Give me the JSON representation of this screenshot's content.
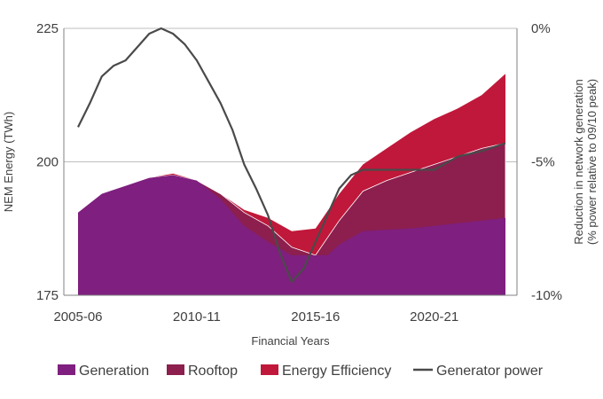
{
  "chart_data": {
    "type": "area",
    "title": "",
    "xlabel": "Financial Years",
    "ylabel": "NEM Energy (TWh)",
    "y2label_line1": "Reduction in network generation",
    "y2label_line2": "(% power relative to 09/10 peak)",
    "ylim": [
      175,
      225
    ],
    "y2lim": [
      -10,
      0
    ],
    "yticks": [
      "175",
      "200",
      "225"
    ],
    "y2ticks": [
      "-10%",
      "-5%",
      "0%"
    ],
    "xticks": [
      "2005-06",
      "2010-11",
      "2015-16",
      "2020-21"
    ],
    "x_start_year": 2005,
    "x_end_year": 2023,
    "grid": "horizontal",
    "legend_position": "bottom",
    "series": [
      {
        "name": "Generation",
        "color": "#7F1F7F",
        "x": [
          2005.0,
          2006.0,
          2007.0,
          2008.0,
          2009.0,
          2010.0,
          2011.0,
          2012.0,
          2013.0,
          2014.0,
          2015.5,
          2016.0,
          2017.0,
          2018.0,
          2019.0,
          2020.0,
          2021.0,
          2022.0,
          2023.0
        ],
        "values": [
          190.5,
          194.0,
          195.5,
          197.0,
          197.5,
          196.5,
          193.0,
          188.0,
          185.0,
          182.5,
          182.5,
          184.5,
          187.0,
          187.3,
          187.5,
          188.0,
          188.5,
          189.0,
          189.5
        ]
      },
      {
        "name": "Rooftop",
        "color": "#8C1F4E",
        "x": [
          2005.0,
          2006.0,
          2007.0,
          2008.0,
          2009.0,
          2010.0,
          2011.0,
          2012.0,
          2013.0,
          2014.0,
          2015.0,
          2016.0,
          2017.0,
          2018.0,
          2019.0,
          2020.0,
          2021.0,
          2022.0,
          2023.0
        ],
        "values": [
          190.5,
          194.0,
          195.5,
          197.0,
          197.5,
          196.5,
          194.0,
          190.5,
          188.0,
          184.0,
          182.5,
          189.0,
          194.5,
          196.5,
          198.0,
          199.5,
          201.0,
          202.5,
          203.5
        ]
      },
      {
        "name": "Energy Efficiency",
        "color": "#C0183A",
        "x": [
          2005.0,
          2006.0,
          2007.0,
          2008.0,
          2009.0,
          2010.0,
          2011.0,
          2012.0,
          2013.0,
          2014.0,
          2015.0,
          2016.0,
          2017.0,
          2018.0,
          2019.0,
          2020.0,
          2021.0,
          2022.0,
          2023.0
        ],
        "values": [
          190.5,
          194.0,
          195.5,
          197.0,
          197.8,
          196.5,
          194.0,
          191.0,
          189.5,
          187.0,
          187.5,
          194.0,
          199.5,
          202.5,
          205.5,
          208.0,
          210.0,
          212.5,
          216.5
        ]
      }
    ],
    "line_series": {
      "name": "Generator power",
      "color": "#4A4A4A",
      "axis": "right",
      "x": [
        2005.0,
        2005.5,
        2006.0,
        2006.5,
        2007.0,
        2007.5,
        2008.0,
        2008.5,
        2009.0,
        2009.5,
        2010.0,
        2010.5,
        2011.0,
        2011.5,
        2012.0,
        2012.5,
        2013.0,
        2013.5,
        2014.0,
        2014.5,
        2015.0,
        2015.5,
        2016.0,
        2016.5,
        2017.0,
        2017.5,
        2018.0,
        2019.0,
        2020.0,
        2021.0,
        2022.0,
        2023.0
      ],
      "values": [
        -3.7,
        -2.8,
        -1.8,
        -1.4,
        -1.2,
        -0.7,
        -0.2,
        0.0,
        -0.2,
        -0.6,
        -1.2,
        -2.0,
        -2.8,
        -3.8,
        -5.1,
        -6.0,
        -7.0,
        -8.4,
        -9.5,
        -9.0,
        -8.0,
        -7.0,
        -6.0,
        -5.5,
        -5.3,
        -5.3,
        -5.3,
        -5.3,
        -5.3,
        -4.8,
        -4.6,
        -4.3
      ]
    }
  }
}
